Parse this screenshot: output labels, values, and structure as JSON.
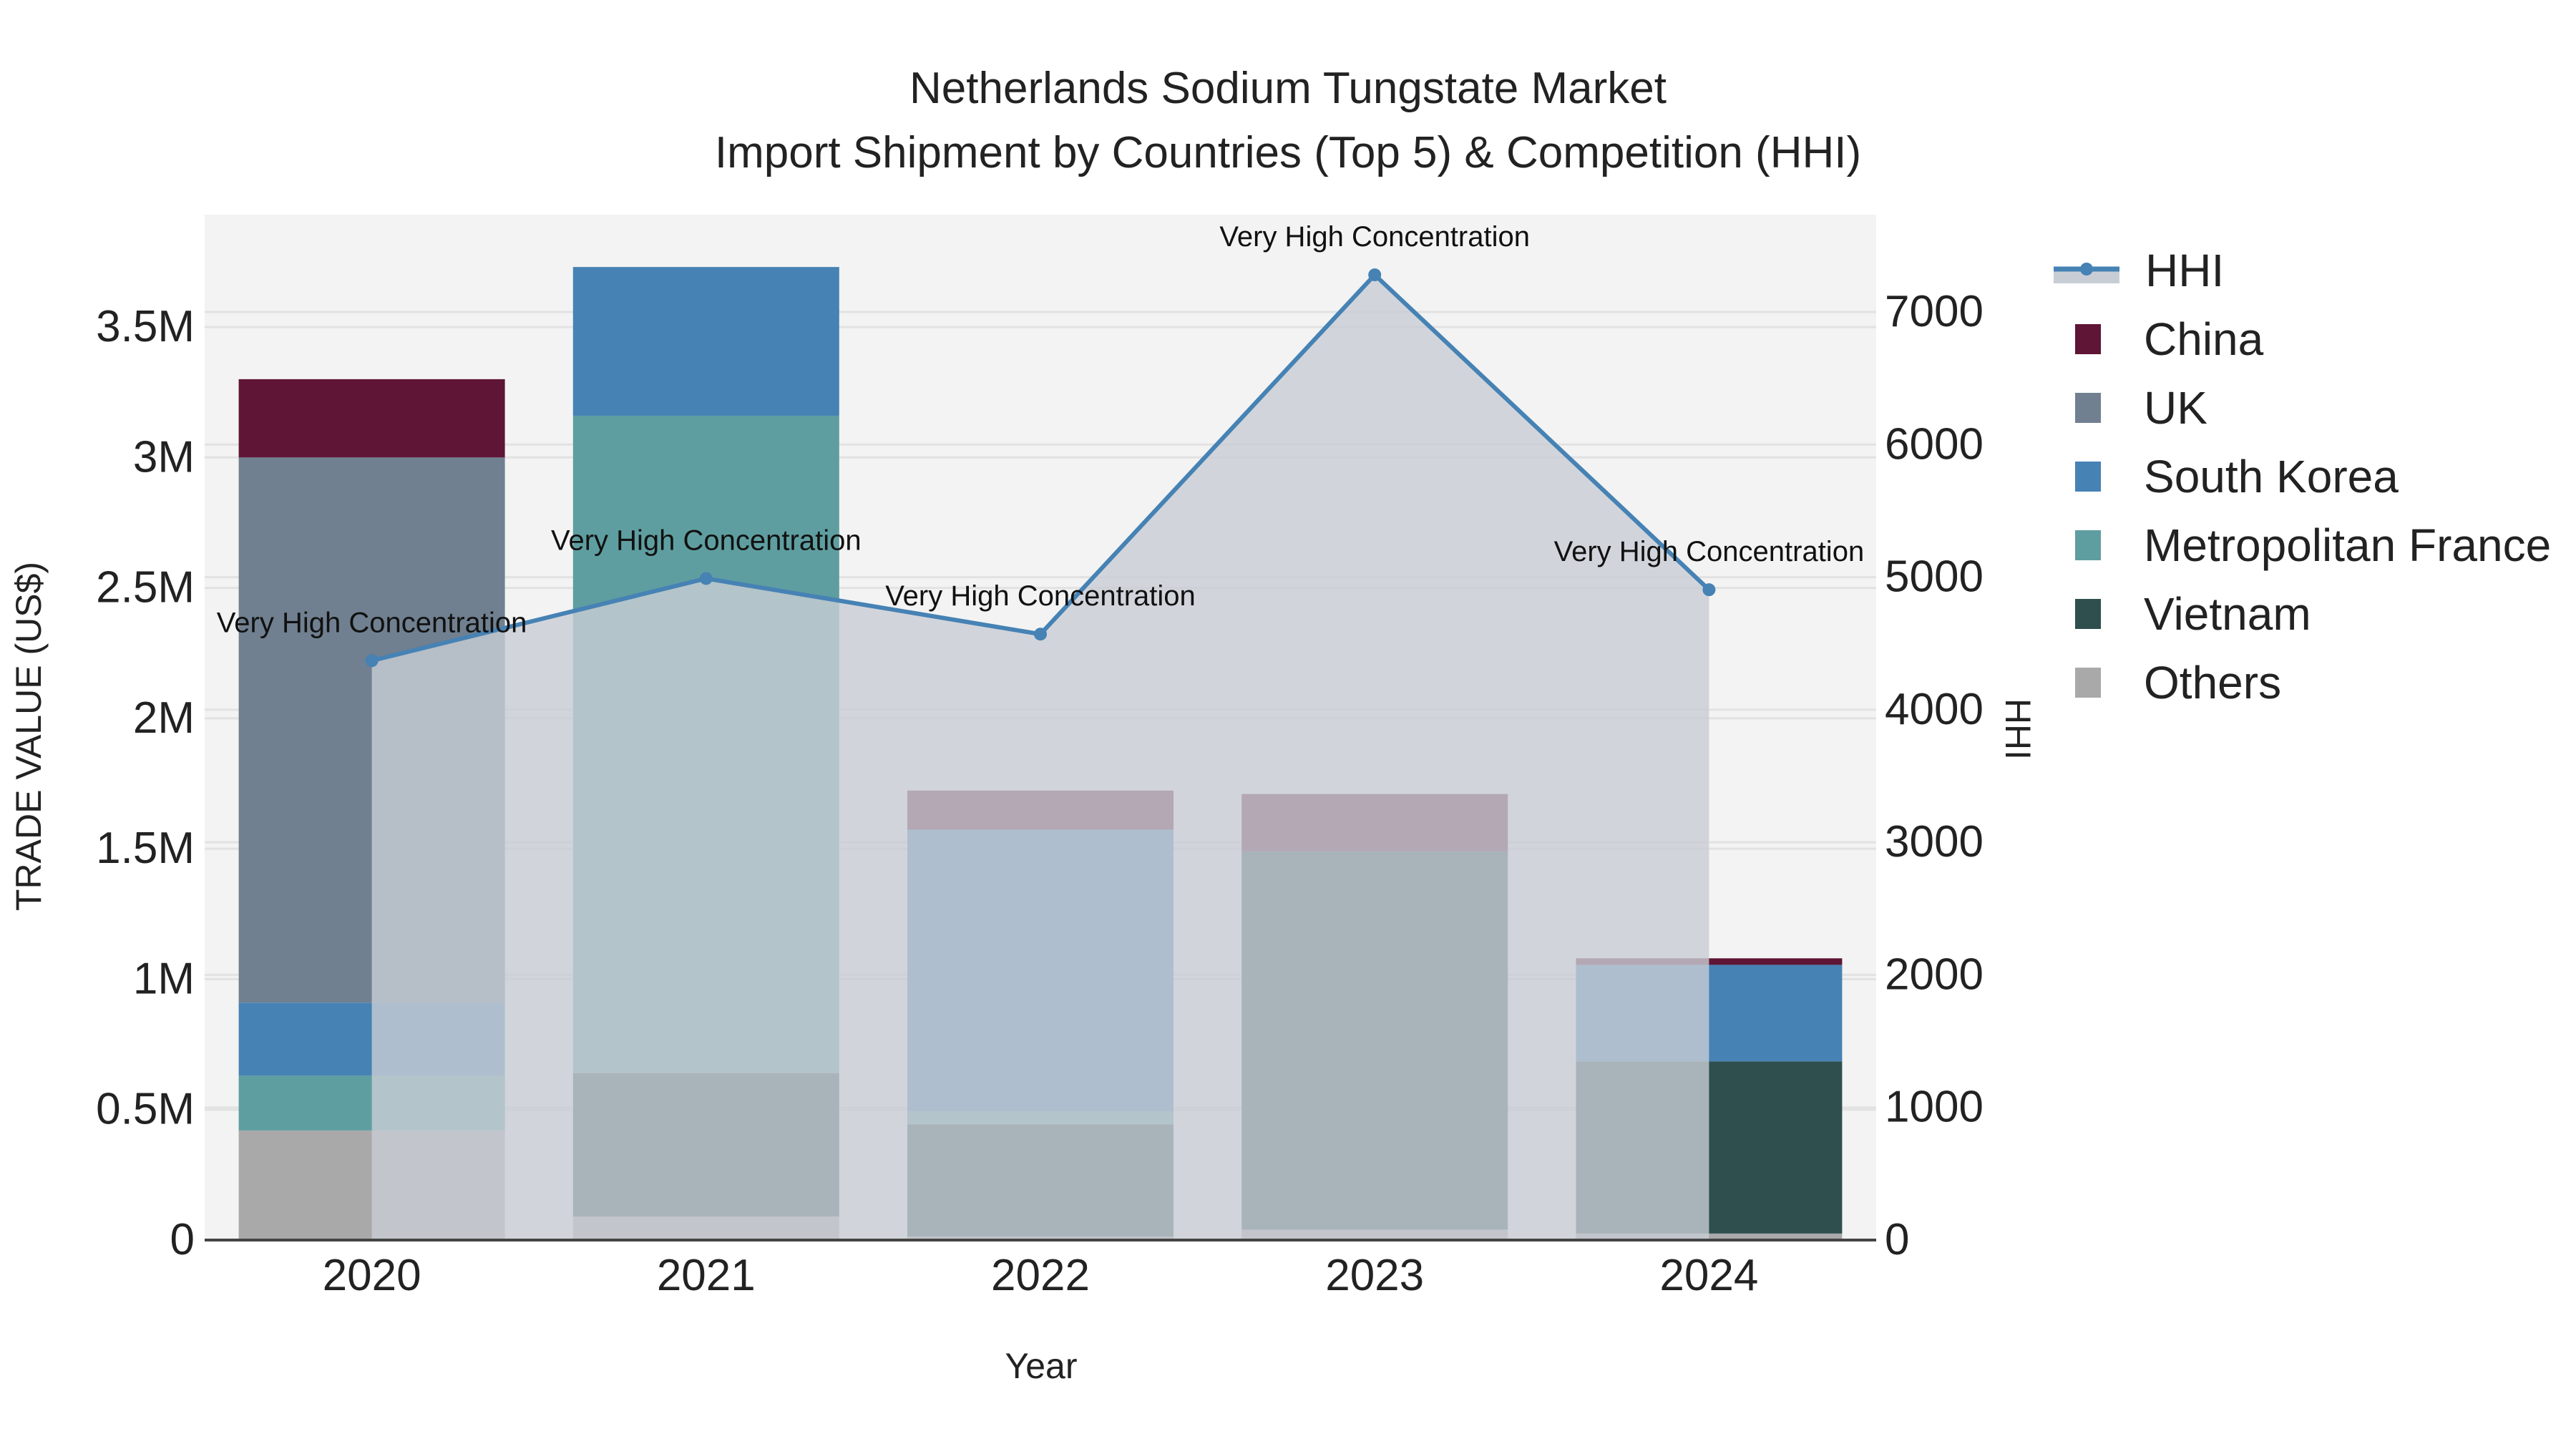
{
  "title": {
    "line1": "Netherlands Sodium Tungstate Market",
    "line2": "Import Shipment by Countries (Top 5) & Competition (HHI)"
  },
  "chart_data": {
    "type": "bar",
    "stacked": true,
    "title": "Netherlands Sodium Tungstate Market — Import Shipment by Countries (Top 5) & Competition (HHI)",
    "xlabel": "Year",
    "ylabel": "TRADE VALUE (US$)",
    "y2label": "HHI",
    "categories": [
      "2020",
      "2021",
      "2022",
      "2023",
      "2024"
    ],
    "ylim": [
      0,
      3900000
    ],
    "y2lim": [
      0,
      7700
    ],
    "yticks": [
      "0",
      "0.5M",
      "1M",
      "1.5M",
      "2M",
      "2.5M",
      "3M",
      "3.5M"
    ],
    "y2ticks": [
      "0",
      "1000",
      "2000",
      "3000",
      "4000",
      "5000",
      "6000",
      "7000"
    ],
    "series": [
      {
        "name": "Others",
        "color": "#A9A9A9",
        "values": [
          420000,
          90000,
          13000,
          40000,
          25000
        ]
      },
      {
        "name": "Vietnam",
        "color": "#2F4F4F",
        "values": [
          0,
          550000,
          430000,
          1450000,
          660000
        ]
      },
      {
        "name": "Metropolitan France",
        "color": "#5F9EA0",
        "values": [
          210000,
          2520000,
          50000,
          0,
          0
        ]
      },
      {
        "name": "South Korea",
        "color": "#4682B4",
        "values": [
          280000,
          570000,
          1080000,
          0,
          370000
        ]
      },
      {
        "name": "UK",
        "color": "#708090",
        "values": [
          2090000,
          0,
          0,
          0,
          0
        ]
      },
      {
        "name": "China",
        "color": "#5F1535",
        "values": [
          300000,
          0,
          150000,
          220000,
          25000
        ]
      }
    ],
    "line_series": {
      "name": "HHI",
      "axis": "y2",
      "color": "#4682B4",
      "fill": "#C8CDD5",
      "values": [
        4370,
        4990,
        4570,
        7280,
        4905
      ],
      "annotations": [
        "Very High Concentration",
        "Very High Concentration",
        "Very High Concentration",
        "Very High Concentration",
        "Very High Concentration"
      ]
    },
    "legend_position": "right",
    "grid": true
  },
  "legend": [
    {
      "label": "HHI",
      "color": "#4682B4",
      "kind": "line"
    },
    {
      "label": "China",
      "color": "#5F1535"
    },
    {
      "label": "UK",
      "color": "#708090"
    },
    {
      "label": "South Korea",
      "color": "#4682B4"
    },
    {
      "label": "Metropolitan France",
      "color": "#5F9EA0"
    },
    {
      "label": "Vietnam",
      "color": "#2F4F4F"
    },
    {
      "label": "Others",
      "color": "#A9A9A9"
    }
  ]
}
